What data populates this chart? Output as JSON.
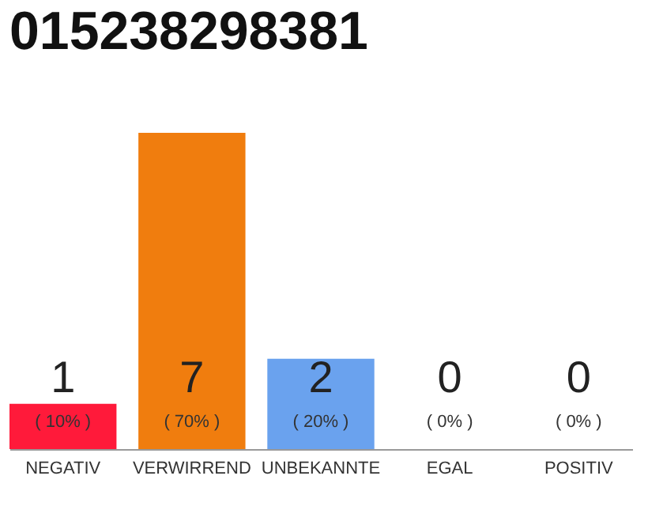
{
  "chart_data": {
    "type": "bar",
    "title": "015238298381",
    "categories": [
      "NEGATIV",
      "VERWIRREND",
      "UNBEKANNTE",
      "EGAL",
      "POSITIV"
    ],
    "values": [
      1,
      7,
      2,
      0,
      0
    ],
    "colors": [
      "#ff1a3a",
      "#f07d0e",
      "#6aa2ee",
      "#d8d8d8",
      "#d8d8d8"
    ],
    "data_labels": true,
    "annotations": [
      "( 10% )",
      "( 70% )",
      "( 20% )",
      "( 0% )",
      "( 0% )"
    ]
  }
}
